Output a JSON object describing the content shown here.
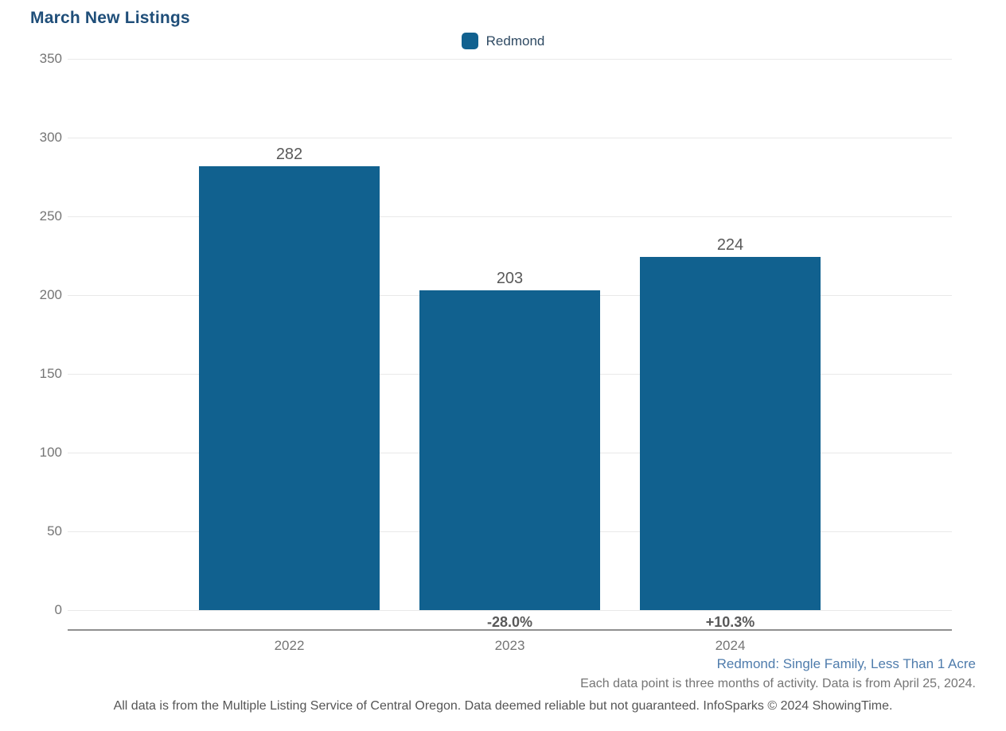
{
  "title": "March New Listings",
  "legend": {
    "label": "Redmond"
  },
  "chart_data": {
    "type": "bar",
    "title": "March New Listings",
    "categories": [
      "2022",
      "2023",
      "2024"
    ],
    "series": [
      {
        "name": "Redmond",
        "values": [
          282,
          203,
          224
        ]
      }
    ],
    "values": [
      282,
      203,
      224
    ],
    "value_labels": [
      "282",
      "203",
      "224"
    ],
    "pct_change_labels": [
      "",
      "-28.0%",
      "+10.3%"
    ],
    "xlabel": "",
    "ylabel": "",
    "ylim": [
      0,
      350
    ],
    "yticks": [
      350,
      300,
      250,
      200,
      150,
      100,
      50,
      0
    ],
    "grid": true,
    "legend_position": "top-center"
  },
  "footnotes": {
    "filter_line": "Redmond: Single Family, Less Than 1 Acre",
    "data_line": "Each data point is three months of activity. Data is from April 25, 2024.",
    "disclaimer_line": "All data is from the Multiple Listing Service of Central Oregon. Data deemed reliable but not guaranteed. InfoSparks © 2024 ShowingTime."
  },
  "colors": {
    "title": "#1f4e79",
    "bar": "#11618f",
    "legend_text": "#2f4a63",
    "axis_labels": "#757575",
    "value_labels": "#595959",
    "pct_labels": "#595959",
    "filter_line": "#4f7cac",
    "footnote": "#757575",
    "disclaimer": "#555555",
    "gridline": "#e9e9e9",
    "axis_line": "#8f8f8f"
  }
}
